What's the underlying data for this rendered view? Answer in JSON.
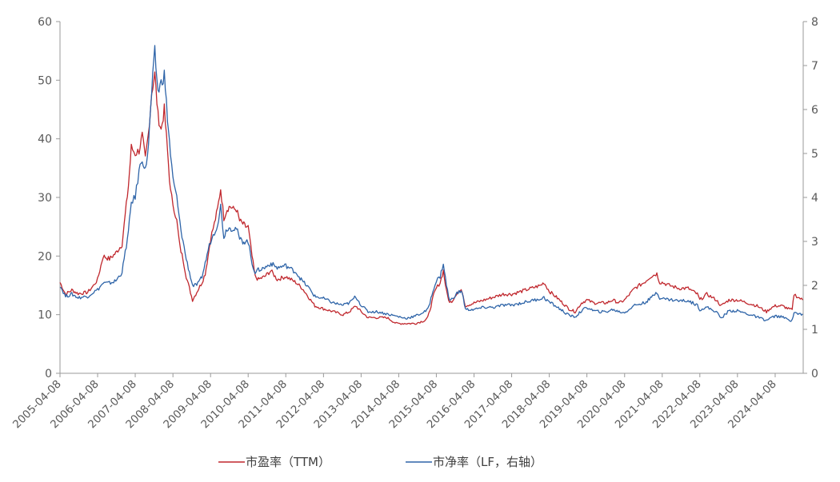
{
  "chart_data": {
    "type": "line",
    "title": "",
    "xlabel": "",
    "ylabel": "",
    "grid": false,
    "legend_position": "bottom",
    "x_ticks": [
      "2005-04-08",
      "2006-04-08",
      "2007-04-08",
      "2008-04-08",
      "2009-04-08",
      "2010-04-08",
      "2011-04-08",
      "2012-04-08",
      "2013-04-08",
      "2014-04-08",
      "2015-04-08",
      "2016-04-08",
      "2017-04-08",
      "2018-04-08",
      "2019-04-08",
      "2020-04-08",
      "2021-04-08",
      "2022-04-08",
      "2023-04-08",
      "2024-04-08"
    ],
    "y_left": {
      "ticks": [
        "0",
        "10",
        "20",
        "30",
        "40",
        "50",
        "60"
      ],
      "ylim": [
        0,
        60
      ]
    },
    "y_right": {
      "ticks": [
        "0",
        "1",
        "2",
        "3",
        "4",
        "5",
        "6",
        "7",
        "8"
      ],
      "ylim": [
        0,
        8
      ]
    },
    "series": [
      {
        "name": "市盈率（TTM）",
        "axis": "left",
        "color": "#c0272d",
        "points": [
          [
            "2005-04-08",
            15.5
          ],
          [
            "2005-06-01",
            13.5
          ],
          [
            "2005-08-01",
            14.2
          ],
          [
            "2005-10-01",
            13.6
          ],
          [
            "2006-01-01",
            13.8
          ],
          [
            "2006-03-01",
            15.0
          ],
          [
            "2006-04-08",
            16.0
          ],
          [
            "2006-06-01",
            20.0
          ],
          [
            "2006-08-01",
            19.5
          ],
          [
            "2006-10-01",
            20.5
          ],
          [
            "2006-12-01",
            22.0
          ],
          [
            "2007-02-01",
            32.0
          ],
          [
            "2007-03-01",
            38.5
          ],
          [
            "2007-04-08",
            37.5
          ],
          [
            "2007-05-15",
            38.0
          ],
          [
            "2007-06-15",
            40.5
          ],
          [
            "2007-07-15",
            36.5
          ],
          [
            "2007-08-15",
            41.0
          ],
          [
            "2007-09-15",
            48.0
          ],
          [
            "2007-10-15",
            51.0
          ],
          [
            "2007-11-15",
            44.0
          ],
          [
            "2007-12-15",
            41.5
          ],
          [
            "2008-01-15",
            45.0
          ],
          [
            "2008-02-15",
            38.0
          ],
          [
            "2008-03-15",
            31.0
          ],
          [
            "2008-04-08",
            29.0
          ],
          [
            "2008-05-15",
            26.0
          ],
          [
            "2008-06-15",
            21.5
          ],
          [
            "2008-07-15",
            19.5
          ],
          [
            "2008-08-15",
            16.5
          ],
          [
            "2008-09-15",
            14.5
          ],
          [
            "2008-10-15",
            12.5
          ],
          [
            "2008-11-15",
            13.5
          ],
          [
            "2008-12-15",
            14.5
          ],
          [
            "2009-01-15",
            15.5
          ],
          [
            "2009-02-15",
            17.0
          ],
          [
            "2009-03-15",
            20.0
          ],
          [
            "2009-04-08",
            23.0
          ],
          [
            "2009-05-15",
            25.5
          ],
          [
            "2009-06-15",
            28.0
          ],
          [
            "2009-07-15",
            31.5
          ],
          [
            "2009-08-15",
            26.5
          ],
          [
            "2009-09-15",
            28.0
          ],
          [
            "2009-10-15",
            28.5
          ],
          [
            "2009-11-15",
            28.0
          ],
          [
            "2009-12-15",
            28.0
          ],
          [
            "2010-01-15",
            26.0
          ],
          [
            "2010-02-15",
            25.5
          ],
          [
            "2010-03-15",
            25.0
          ],
          [
            "2010-04-08",
            25.0
          ],
          [
            "2010-05-15",
            20.0
          ],
          [
            "2010-06-15",
            16.5
          ],
          [
            "2010-07-15",
            16.0
          ],
          [
            "2010-09-15",
            16.5
          ],
          [
            "2010-11-15",
            17.5
          ],
          [
            "2011-01-15",
            16.0
          ],
          [
            "2011-04-08",
            16.5
          ],
          [
            "2011-07-15",
            15.5
          ],
          [
            "2011-09-15",
            14.5
          ],
          [
            "2011-11-15",
            13.0
          ],
          [
            "2012-01-15",
            11.5
          ],
          [
            "2012-04-08",
            11.0
          ],
          [
            "2012-07-15",
            10.5
          ],
          [
            "2012-10-15",
            10.0
          ],
          [
            "2012-12-15",
            10.5
          ],
          [
            "2013-02-15",
            11.5
          ],
          [
            "2013-04-08",
            10.5
          ],
          [
            "2013-06-15",
            9.5
          ],
          [
            "2013-09-15",
            9.5
          ],
          [
            "2013-12-15",
            9.5
          ],
          [
            "2014-03-15",
            8.5
          ],
          [
            "2014-06-15",
            8.5
          ],
          [
            "2014-09-15",
            8.5
          ],
          [
            "2014-12-15",
            9.0
          ],
          [
            "2015-01-15",
            9.5
          ],
          [
            "2015-02-15",
            11.5
          ],
          [
            "2015-03-15",
            13.5
          ],
          [
            "2015-04-08",
            14.5
          ],
          [
            "2015-05-15",
            15.5
          ],
          [
            "2015-06-15",
            17.5
          ],
          [
            "2015-07-15",
            14.0
          ],
          [
            "2015-08-15",
            12.0
          ],
          [
            "2015-09-15",
            12.5
          ],
          [
            "2015-10-15",
            13.5
          ],
          [
            "2015-11-15",
            14.0
          ],
          [
            "2015-12-15",
            14.0
          ],
          [
            "2016-01-15",
            11.5
          ],
          [
            "2016-04-08",
            12.0
          ],
          [
            "2016-07-15",
            12.5
          ],
          [
            "2016-10-15",
            13.0
          ],
          [
            "2017-01-15",
            13.5
          ],
          [
            "2017-04-08",
            13.5
          ],
          [
            "2017-07-15",
            14.0
          ],
          [
            "2017-10-15",
            14.5
          ],
          [
            "2018-01-15",
            15.0
          ],
          [
            "2018-02-15",
            15.5
          ],
          [
            "2018-04-08",
            14.0
          ],
          [
            "2018-06-15",
            13.0
          ],
          [
            "2018-08-15",
            12.0
          ],
          [
            "2018-10-15",
            11.0
          ],
          [
            "2018-12-15",
            10.5
          ],
          [
            "2019-02-15",
            12.0
          ],
          [
            "2019-04-08",
            12.5
          ],
          [
            "2019-06-15",
            12.0
          ],
          [
            "2019-08-15",
            12.0
          ],
          [
            "2019-10-15",
            12.0
          ],
          [
            "2019-12-15",
            12.5
          ],
          [
            "2020-02-15",
            12.0
          ],
          [
            "2020-04-08",
            12.5
          ],
          [
            "2020-07-15",
            14.5
          ],
          [
            "2020-10-15",
            15.5
          ],
          [
            "2020-12-15",
            16.5
          ],
          [
            "2021-02-15",
            17.0
          ],
          [
            "2021-03-15",
            15.5
          ],
          [
            "2021-04-08",
            15.5
          ],
          [
            "2021-06-15",
            15.0
          ],
          [
            "2021-09-15",
            14.5
          ],
          [
            "2021-12-15",
            14.5
          ],
          [
            "2022-03-15",
            13.5
          ],
          [
            "2022-04-08",
            12.5
          ],
          [
            "2022-06-15",
            13.5
          ],
          [
            "2022-09-15",
            12.5
          ],
          [
            "2022-10-31",
            11.5
          ],
          [
            "2023-01-15",
            12.5
          ],
          [
            "2023-04-08",
            12.5
          ],
          [
            "2023-07-15",
            12.0
          ],
          [
            "2023-10-15",
            11.5
          ],
          [
            "2024-01-15",
            10.5
          ],
          [
            "2024-02-15",
            11.0
          ],
          [
            "2024-04-08",
            11.5
          ],
          [
            "2024-06-15",
            11.5
          ],
          [
            "2024-08-15",
            11.0
          ],
          [
            "2024-09-20",
            10.8
          ],
          [
            "2024-10-08",
            13.5
          ],
          [
            "2024-11-15",
            13.0
          ],
          [
            "2024-12-31",
            12.5
          ]
        ]
      },
      {
        "name": "市净率（LF，右轴）",
        "axis": "right",
        "color": "#2e64a8",
        "points": [
          [
            "2005-04-08",
            2.0
          ],
          [
            "2005-06-01",
            1.75
          ],
          [
            "2005-08-01",
            1.8
          ],
          [
            "2005-10-01",
            1.72
          ],
          [
            "2006-01-01",
            1.75
          ],
          [
            "2006-03-01",
            1.85
          ],
          [
            "2006-04-08",
            1.9
          ],
          [
            "2006-06-01",
            2.05
          ],
          [
            "2006-08-01",
            2.05
          ],
          [
            "2006-10-01",
            2.1
          ],
          [
            "2006-12-01",
            2.3
          ],
          [
            "2007-02-01",
            3.2
          ],
          [
            "2007-03-01",
            3.9
          ],
          [
            "2007-04-08",
            4.0
          ],
          [
            "2007-05-15",
            4.6
          ],
          [
            "2007-06-15",
            4.9
          ],
          [
            "2007-07-15",
            4.6
          ],
          [
            "2007-08-15",
            5.2
          ],
          [
            "2007-09-15",
            6.4
          ],
          [
            "2007-10-15",
            7.3
          ],
          [
            "2007-11-15",
            6.4
          ],
          [
            "2007-12-15",
            6.6
          ],
          [
            "2008-01-15",
            6.8
          ],
          [
            "2008-02-15",
            5.8
          ],
          [
            "2008-03-15",
            5.0
          ],
          [
            "2008-04-08",
            4.4
          ],
          [
            "2008-05-15",
            4.0
          ],
          [
            "2008-06-15",
            3.4
          ],
          [
            "2008-07-15",
            3.0
          ],
          [
            "2008-08-15",
            2.6
          ],
          [
            "2008-09-15",
            2.3
          ],
          [
            "2008-10-15",
            2.0
          ],
          [
            "2008-11-15",
            2.0
          ],
          [
            "2008-12-15",
            2.05
          ],
          [
            "2009-01-15",
            2.2
          ],
          [
            "2009-02-15",
            2.5
          ],
          [
            "2009-03-15",
            2.8
          ],
          [
            "2009-04-08",
            3.0
          ],
          [
            "2009-05-15",
            3.2
          ],
          [
            "2009-06-15",
            3.4
          ],
          [
            "2009-07-15",
            3.8
          ],
          [
            "2009-08-15",
            3.1
          ],
          [
            "2009-09-15",
            3.3
          ],
          [
            "2009-10-15",
            3.3
          ],
          [
            "2009-11-15",
            3.3
          ],
          [
            "2009-12-15",
            3.3
          ],
          [
            "2010-01-15",
            3.05
          ],
          [
            "2010-02-15",
            3.0
          ],
          [
            "2010-03-15",
            3.0
          ],
          [
            "2010-04-08",
            3.0
          ],
          [
            "2010-05-15",
            2.5
          ],
          [
            "2010-06-15",
            2.3
          ],
          [
            "2010-07-15",
            2.35
          ],
          [
            "2010-09-15",
            2.4
          ],
          [
            "2010-11-15",
            2.5
          ],
          [
            "2011-01-15",
            2.4
          ],
          [
            "2011-04-08",
            2.45
          ],
          [
            "2011-07-15",
            2.3
          ],
          [
            "2011-09-15",
            2.1
          ],
          [
            "2011-11-15",
            1.95
          ],
          [
            "2012-01-15",
            1.75
          ],
          [
            "2012-04-08",
            1.7
          ],
          [
            "2012-07-15",
            1.6
          ],
          [
            "2012-10-15",
            1.55
          ],
          [
            "2012-12-15",
            1.6
          ],
          [
            "2013-02-15",
            1.75
          ],
          [
            "2013-04-08",
            1.55
          ],
          [
            "2013-06-15",
            1.4
          ],
          [
            "2013-09-15",
            1.4
          ],
          [
            "2013-12-15",
            1.35
          ],
          [
            "2014-03-15",
            1.3
          ],
          [
            "2014-06-15",
            1.25
          ],
          [
            "2014-09-15",
            1.3
          ],
          [
            "2014-12-15",
            1.4
          ],
          [
            "2015-01-15",
            1.45
          ],
          [
            "2015-02-15",
            1.7
          ],
          [
            "2015-03-15",
            1.95
          ],
          [
            "2015-04-08",
            2.1
          ],
          [
            "2015-05-15",
            2.2
          ],
          [
            "2015-06-15",
            2.5
          ],
          [
            "2015-07-15",
            2.0
          ],
          [
            "2015-08-15",
            1.65
          ],
          [
            "2015-09-15",
            1.7
          ],
          [
            "2015-10-15",
            1.8
          ],
          [
            "2015-11-15",
            1.85
          ],
          [
            "2015-12-15",
            1.85
          ],
          [
            "2016-01-15",
            1.45
          ],
          [
            "2016-04-08",
            1.45
          ],
          [
            "2016-07-15",
            1.5
          ],
          [
            "2016-10-15",
            1.5
          ],
          [
            "2017-01-15",
            1.55
          ],
          [
            "2017-04-08",
            1.55
          ],
          [
            "2017-07-15",
            1.6
          ],
          [
            "2017-10-15",
            1.65
          ],
          [
            "2018-01-15",
            1.7
          ],
          [
            "2018-02-15",
            1.72
          ],
          [
            "2018-04-08",
            1.62
          ],
          [
            "2018-06-15",
            1.52
          ],
          [
            "2018-08-15",
            1.42
          ],
          [
            "2018-10-15",
            1.32
          ],
          [
            "2018-12-15",
            1.28
          ],
          [
            "2019-02-15",
            1.42
          ],
          [
            "2019-04-08",
            1.5
          ],
          [
            "2019-06-15",
            1.42
          ],
          [
            "2019-08-15",
            1.4
          ],
          [
            "2019-10-15",
            1.4
          ],
          [
            "2019-12-15",
            1.45
          ],
          [
            "2020-02-15",
            1.4
          ],
          [
            "2020-04-08",
            1.38
          ],
          [
            "2020-07-15",
            1.55
          ],
          [
            "2020-10-15",
            1.6
          ],
          [
            "2020-12-15",
            1.7
          ],
          [
            "2021-02-15",
            1.85
          ],
          [
            "2021-03-15",
            1.72
          ],
          [
            "2021-04-08",
            1.7
          ],
          [
            "2021-06-15",
            1.68
          ],
          [
            "2021-09-15",
            1.65
          ],
          [
            "2021-12-15",
            1.65
          ],
          [
            "2022-03-15",
            1.55
          ],
          [
            "2022-04-08",
            1.45
          ],
          [
            "2022-06-15",
            1.5
          ],
          [
            "2022-09-15",
            1.4
          ],
          [
            "2022-10-31",
            1.25
          ],
          [
            "2023-01-15",
            1.42
          ],
          [
            "2023-04-08",
            1.42
          ],
          [
            "2023-07-15",
            1.35
          ],
          [
            "2023-10-15",
            1.28
          ],
          [
            "2024-01-15",
            1.2
          ],
          [
            "2024-02-15",
            1.25
          ],
          [
            "2024-04-08",
            1.3
          ],
          [
            "2024-06-15",
            1.28
          ],
          [
            "2024-08-15",
            1.22
          ],
          [
            "2024-09-20",
            1.2
          ],
          [
            "2024-10-08",
            1.4
          ],
          [
            "2024-11-15",
            1.35
          ],
          [
            "2024-12-31",
            1.35
          ]
        ]
      }
    ]
  }
}
